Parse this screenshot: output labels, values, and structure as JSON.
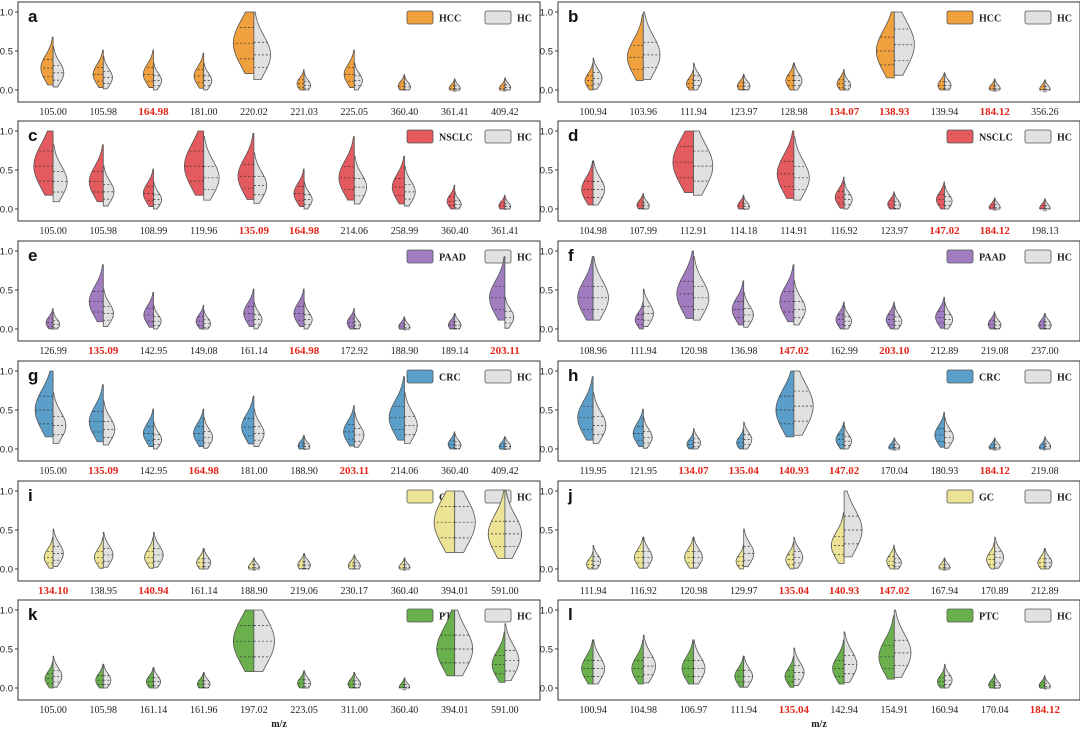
{
  "figure": {
    "xlabel": "m/z"
  },
  "chart_data": [
    {
      "panel": "a",
      "type": "violin",
      "series": [
        "HCC",
        "HC"
      ],
      "colors": {
        "HCC": "#f0a13e",
        "HC": "#e1e1e1"
      },
      "ylim": [
        0,
        1.0
      ],
      "yticks": [
        0.0,
        0.5,
        1.0
      ],
      "categories": [
        "105.00",
        "105.98",
        "164.98",
        "181.00",
        "220.02",
        "221.03",
        "225.05",
        "360.40",
        "361.41",
        "409.42"
      ],
      "highlighted": [
        "164.98"
      ],
      "values": [
        [
          0.28,
          0.22
        ],
        [
          0.2,
          0.16
        ],
        [
          0.2,
          0.12
        ],
        [
          0.18,
          0.12
        ],
        [
          0.6,
          0.45
        ],
        [
          0.08,
          0.06
        ],
        [
          0.2,
          0.12
        ],
        [
          0.05,
          0.04
        ],
        [
          0.02,
          0.02
        ],
        [
          0.02,
          0.03
        ]
      ]
    },
    {
      "panel": "b",
      "type": "violin",
      "series": [
        "HCC",
        "HC"
      ],
      "colors": {
        "HCC": "#f0a13e",
        "HC": "#e1e1e1"
      },
      "ylim": [
        0,
        1.0
      ],
      "yticks": [
        0.0,
        0.5,
        1.0
      ],
      "categories": [
        "100.94",
        "103.96",
        "111.94",
        "123.97",
        "128.98",
        "134.07",
        "138.93",
        "139.94",
        "184.12",
        "356.26"
      ],
      "highlighted": [
        "134.07",
        "138.93",
        "184.12"
      ],
      "values": [
        [
          0.12,
          0.15
        ],
        [
          0.42,
          0.45
        ],
        [
          0.08,
          0.12
        ],
        [
          0.05,
          0.05
        ],
        [
          0.12,
          0.12
        ],
        [
          0.08,
          0.06
        ],
        [
          0.5,
          0.58
        ],
        [
          0.06,
          0.06
        ],
        [
          0.02,
          0.02
        ],
        [
          0.01,
          0.01
        ]
      ]
    },
    {
      "panel": "c",
      "type": "violin",
      "series": [
        "NSCLC",
        "HC"
      ],
      "colors": {
        "NSCLC": "#e45a5e",
        "HC": "#e1e1e1"
      },
      "ylim": [
        0,
        1.0
      ],
      "yticks": [
        0.0,
        0.5,
        1.0
      ],
      "categories": [
        "105.00",
        "105.98",
        "108.99",
        "119.96",
        "135.09",
        "164.98",
        "214.06",
        "258.99",
        "360.40",
        "361.41"
      ],
      "highlighted": [
        "135.09",
        "164.98"
      ],
      "values": [
        [
          0.55,
          0.35
        ],
        [
          0.35,
          0.22
        ],
        [
          0.2,
          0.12
        ],
        [
          0.55,
          0.4
        ],
        [
          0.42,
          0.3
        ],
        [
          0.2,
          0.12
        ],
        [
          0.4,
          0.28
        ],
        [
          0.28,
          0.22
        ],
        [
          0.1,
          0.06
        ],
        [
          0.04,
          0.03
        ]
      ]
    },
    {
      "panel": "d",
      "type": "violin",
      "series": [
        "NSCLC",
        "HC"
      ],
      "colors": {
        "NSCLC": "#e45a5e",
        "HC": "#e1e1e1"
      },
      "ylim": [
        0,
        1.0
      ],
      "yticks": [
        0.0,
        0.5,
        1.0
      ],
      "categories": [
        "104.98",
        "107.99",
        "112.91",
        "114.18",
        "114.91",
        "116.92",
        "123.97",
        "147.02",
        "184.12",
        "198.13"
      ],
      "highlighted": [
        "147.02",
        "184.12"
      ],
      "values": [
        [
          0.25,
          0.25
        ],
        [
          0.05,
          0.04
        ],
        [
          0.6,
          0.55
        ],
        [
          0.04,
          0.03
        ],
        [
          0.45,
          0.4
        ],
        [
          0.15,
          0.12
        ],
        [
          0.06,
          0.05
        ],
        [
          0.12,
          0.1
        ],
        [
          0.02,
          0.02
        ],
        [
          0.01,
          0.01
        ]
      ]
    },
    {
      "panel": "e",
      "type": "violin",
      "series": [
        "PAAD",
        "HC"
      ],
      "colors": {
        "PAAD": "#a17cc0",
        "HC": "#e1e1e1"
      },
      "ylim": [
        0,
        1.0
      ],
      "yticks": [
        0.0,
        0.5,
        1.0
      ],
      "categories": [
        "126.99",
        "135.09",
        "142.95",
        "149.08",
        "161.14",
        "164.98",
        "172.92",
        "188.90",
        "189.14",
        "203.11"
      ],
      "highlighted": [
        "135.09",
        "164.98",
        "203.11"
      ],
      "values": [
        [
          0.08,
          0.06
        ],
        [
          0.35,
          0.2
        ],
        [
          0.18,
          0.1
        ],
        [
          0.1,
          0.07
        ],
        [
          0.2,
          0.12
        ],
        [
          0.2,
          0.12
        ],
        [
          0.08,
          0.05
        ],
        [
          0.03,
          0.02
        ],
        [
          0.05,
          0.05
        ],
        [
          0.4,
          0.15
        ]
      ]
    },
    {
      "panel": "f",
      "type": "violin",
      "series": [
        "PAAD",
        "HC"
      ],
      "colors": {
        "PAAD": "#a17cc0",
        "HC": "#e1e1e1"
      },
      "ylim": [
        0,
        1.0
      ],
      "yticks": [
        0.0,
        0.5,
        1.0
      ],
      "categories": [
        "108.96",
        "111.94",
        "120.98",
        "136.98",
        "147.02",
        "162.99",
        "203.10",
        "212.89",
        "219.08",
        "237.00"
      ],
      "highlighted": [
        "147.02",
        "203.10"
      ],
      "values": [
        [
          0.4,
          0.4
        ],
        [
          0.12,
          0.2
        ],
        [
          0.45,
          0.4
        ],
        [
          0.25,
          0.18
        ],
        [
          0.35,
          0.25
        ],
        [
          0.12,
          0.1
        ],
        [
          0.12,
          0.1
        ],
        [
          0.15,
          0.12
        ],
        [
          0.06,
          0.05
        ],
        [
          0.05,
          0.05
        ]
      ]
    },
    {
      "panel": "g",
      "type": "violin",
      "series": [
        "CRC",
        "HC"
      ],
      "colors": {
        "CRC": "#5b9ec9",
        "HC": "#e1e1e1"
      },
      "ylim": [
        0,
        1.0
      ],
      "yticks": [
        0.0,
        0.5,
        1.0
      ],
      "categories": [
        "105.00",
        "135.09",
        "142.95",
        "164.98",
        "181.00",
        "188.90",
        "203.11",
        "214.06",
        "360.40",
        "409.42"
      ],
      "highlighted": [
        "135.09",
        "164.98",
        "203.11"
      ],
      "values": [
        [
          0.5,
          0.3
        ],
        [
          0.35,
          0.25
        ],
        [
          0.2,
          0.12
        ],
        [
          0.2,
          0.15
        ],
        [
          0.28,
          0.2
        ],
        [
          0.04,
          0.03
        ],
        [
          0.22,
          0.18
        ],
        [
          0.4,
          0.3
        ],
        [
          0.06,
          0.05
        ],
        [
          0.03,
          0.03
        ]
      ]
    },
    {
      "panel": "h",
      "type": "violin",
      "series": [
        "CRC",
        "HC"
      ],
      "colors": {
        "CRC": "#5b9ec9",
        "HC": "#e1e1e1"
      },
      "ylim": [
        0,
        1.0
      ],
      "yticks": [
        0.0,
        0.5,
        1.0
      ],
      "categories": [
        "119.95",
        "121.95",
        "134.07",
        "135.04",
        "140.93",
        "147.02",
        "170.04",
        "180.93",
        "184.12",
        "219.08"
      ],
      "highlighted": [
        "134.07",
        "135.04",
        "140.93",
        "147.02",
        "184.12"
      ],
      "values": [
        [
          0.4,
          0.3
        ],
        [
          0.2,
          0.15
        ],
        [
          0.06,
          0.08
        ],
        [
          0.08,
          0.12
        ],
        [
          0.5,
          0.55
        ],
        [
          0.12,
          0.1
        ],
        [
          0.02,
          0.02
        ],
        [
          0.18,
          0.15
        ],
        [
          0.02,
          0.02
        ],
        [
          0.02,
          0.03
        ]
      ]
    },
    {
      "panel": "i",
      "type": "violin",
      "series": [
        "GC",
        "HC"
      ],
      "colors": {
        "GC": "#ece494",
        "HC": "#e1e1e1"
      },
      "ylim": [
        0,
        1.0
      ],
      "yticks": [
        0.0,
        0.5,
        1.0
      ],
      "categories": [
        "134.10",
        "138.95",
        "140.94",
        "161.14",
        "188.90",
        "219.06",
        "230.17",
        "360.40",
        "394.01",
        "591.00"
      ],
      "highlighted": [
        "134.10",
        "140.94"
      ],
      "values": [
        [
          0.15,
          0.2
        ],
        [
          0.15,
          0.18
        ],
        [
          0.15,
          0.18
        ],
        [
          0.08,
          0.08
        ],
        [
          0.02,
          0.02
        ],
        [
          0.05,
          0.05
        ],
        [
          0.04,
          0.04
        ],
        [
          0.02,
          0.02
        ],
        [
          0.6,
          0.6
        ],
        [
          0.45,
          0.45
        ]
      ]
    },
    {
      "panel": "j",
      "type": "violin",
      "series": [
        "GC",
        "HC"
      ],
      "colors": {
        "GC": "#ece494",
        "HC": "#e1e1e1"
      },
      "ylim": [
        0,
        1.0
      ],
      "yticks": [
        0.0,
        0.5,
        1.0
      ],
      "categories": [
        "111.94",
        "116.92",
        "120.98",
        "129.97",
        "135.04",
        "140.93",
        "147.02",
        "167.94",
        "170.89",
        "212.89"
      ],
      "highlighted": [
        "135.04",
        "140.93",
        "147.02"
      ],
      "values": [
        [
          0.06,
          0.1
        ],
        [
          0.15,
          0.15
        ],
        [
          0.15,
          0.15
        ],
        [
          0.1,
          0.2
        ],
        [
          0.12,
          0.15
        ],
        [
          0.3,
          0.5
        ],
        [
          0.1,
          0.08
        ],
        [
          0.02,
          0.02
        ],
        [
          0.12,
          0.15
        ],
        [
          0.08,
          0.08
        ]
      ]
    },
    {
      "panel": "k",
      "type": "violin",
      "series": [
        "PTC",
        "HC"
      ],
      "colors": {
        "PTC": "#6ab04c",
        "HC": "#e1e1e1"
      },
      "ylim": [
        0,
        1.0
      ],
      "yticks": [
        0.0,
        0.5,
        1.0
      ],
      "categories": [
        "105.00",
        "105.98",
        "161.14",
        "161.96",
        "197.02",
        "223.05",
        "311.00",
        "360.40",
        "394.01",
        "591.00"
      ],
      "highlighted": [],
      "values": [
        [
          0.12,
          0.15
        ],
        [
          0.1,
          0.1
        ],
        [
          0.08,
          0.08
        ],
        [
          0.05,
          0.05
        ],
        [
          0.6,
          0.6
        ],
        [
          0.06,
          0.06
        ],
        [
          0.05,
          0.05
        ],
        [
          0.01,
          0.01
        ],
        [
          0.5,
          0.5
        ],
        [
          0.3,
          0.35
        ]
      ]
    },
    {
      "panel": "l",
      "type": "violin",
      "series": [
        "PTC",
        "HC"
      ],
      "colors": {
        "PTC": "#6ab04c",
        "HC": "#e1e1e1"
      },
      "ylim": [
        0,
        1.0
      ],
      "yticks": [
        0.0,
        0.5,
        1.0
      ],
      "categories": [
        "100.94",
        "104.98",
        "106.97",
        "111.94",
        "135.04",
        "142.94",
        "154.91",
        "160.94",
        "170.04",
        "184.12"
      ],
      "highlighted": [
        "135.04",
        "184.12"
      ],
      "values": [
        [
          0.25,
          0.25
        ],
        [
          0.25,
          0.28
        ],
        [
          0.25,
          0.25
        ],
        [
          0.15,
          0.15
        ],
        [
          0.15,
          0.2
        ],
        [
          0.25,
          0.3
        ],
        [
          0.4,
          0.45
        ],
        [
          0.08,
          0.1
        ],
        [
          0.04,
          0.03
        ],
        [
          0.03,
          0.02
        ]
      ]
    }
  ]
}
